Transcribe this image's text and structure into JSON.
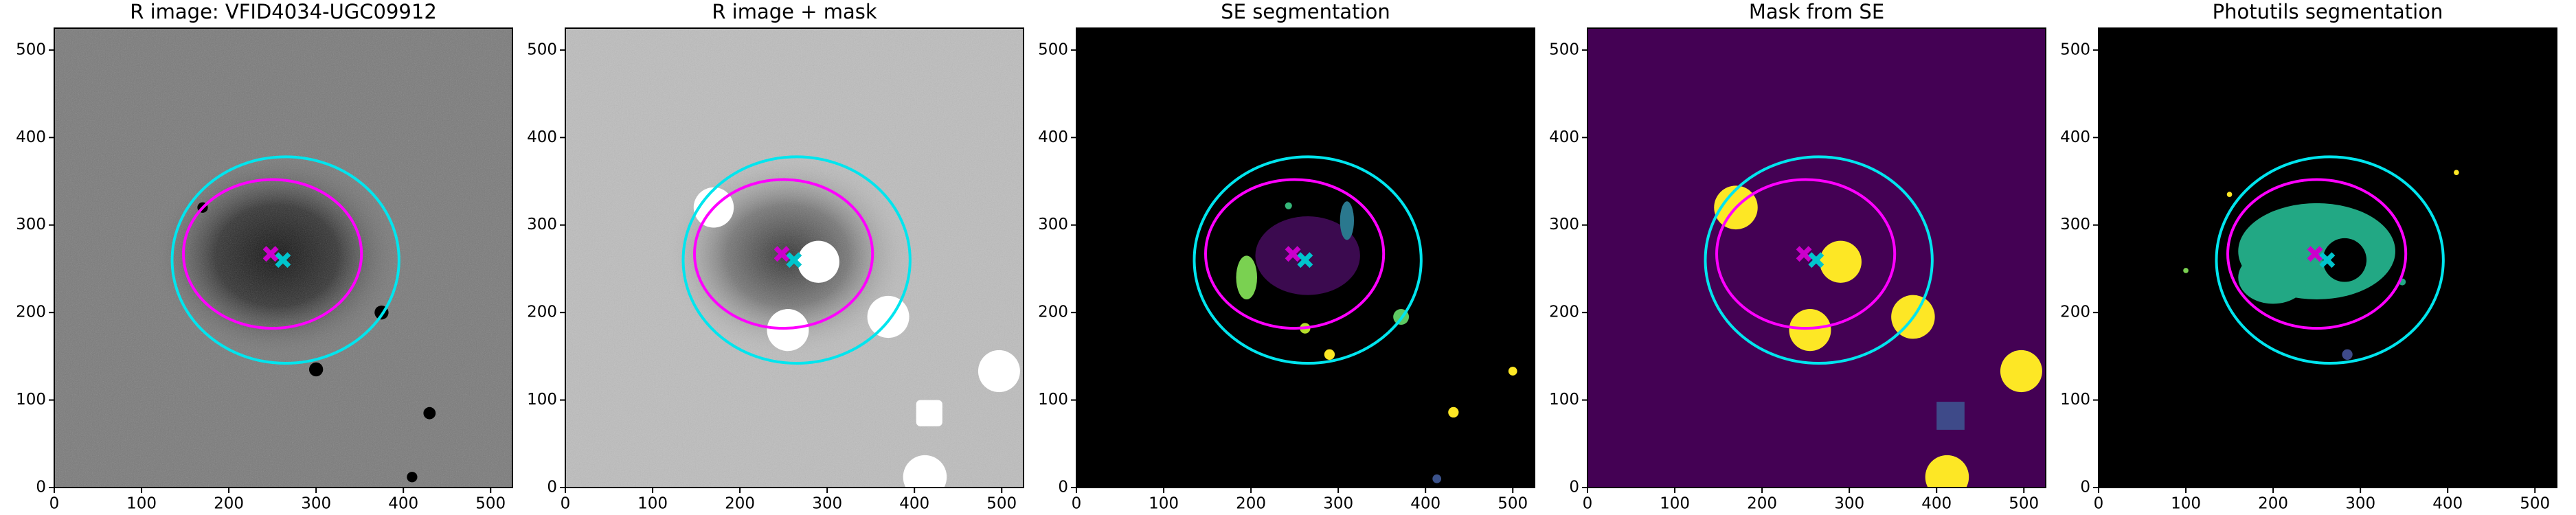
{
  "chart_data": [
    {
      "type": "image",
      "title": "R image: VFID4034-UGC09912",
      "xlim": [
        0,
        525
      ],
      "ylim": [
        0,
        525
      ],
      "xticks": [
        0,
        100,
        200,
        300,
        400,
        500
      ],
      "yticks": [
        0,
        100,
        200,
        300,
        400,
        500
      ]
    },
    {
      "type": "image",
      "title": "R image + mask",
      "xlim": [
        0,
        525
      ],
      "ylim": [
        0,
        525
      ],
      "xticks": [
        0,
        100,
        200,
        300,
        400,
        500
      ],
      "yticks": [
        0,
        100,
        200,
        300,
        400,
        500
      ]
    },
    {
      "type": "image",
      "title": "SE segmentation",
      "xlim": [
        0,
        525
      ],
      "ylim": [
        0,
        525
      ],
      "xticks": [
        0,
        100,
        200,
        300,
        400,
        500
      ],
      "yticks": [
        0,
        100,
        200,
        300,
        400,
        500
      ]
    },
    {
      "type": "image",
      "title": "Mask from SE",
      "xlim": [
        0,
        525
      ],
      "ylim": [
        0,
        525
      ],
      "xticks": [
        0,
        100,
        200,
        300,
        400,
        500
      ],
      "yticks": [
        0,
        100,
        200,
        300,
        400,
        500
      ]
    },
    {
      "type": "image",
      "title": "Photutils segmentation",
      "xlim": [
        0,
        525
      ],
      "ylim": [
        0,
        525
      ],
      "xticks": [
        0,
        100,
        200,
        300,
        400,
        500
      ],
      "yticks": [
        0,
        100,
        200,
        300,
        400,
        500
      ]
    }
  ]
}
